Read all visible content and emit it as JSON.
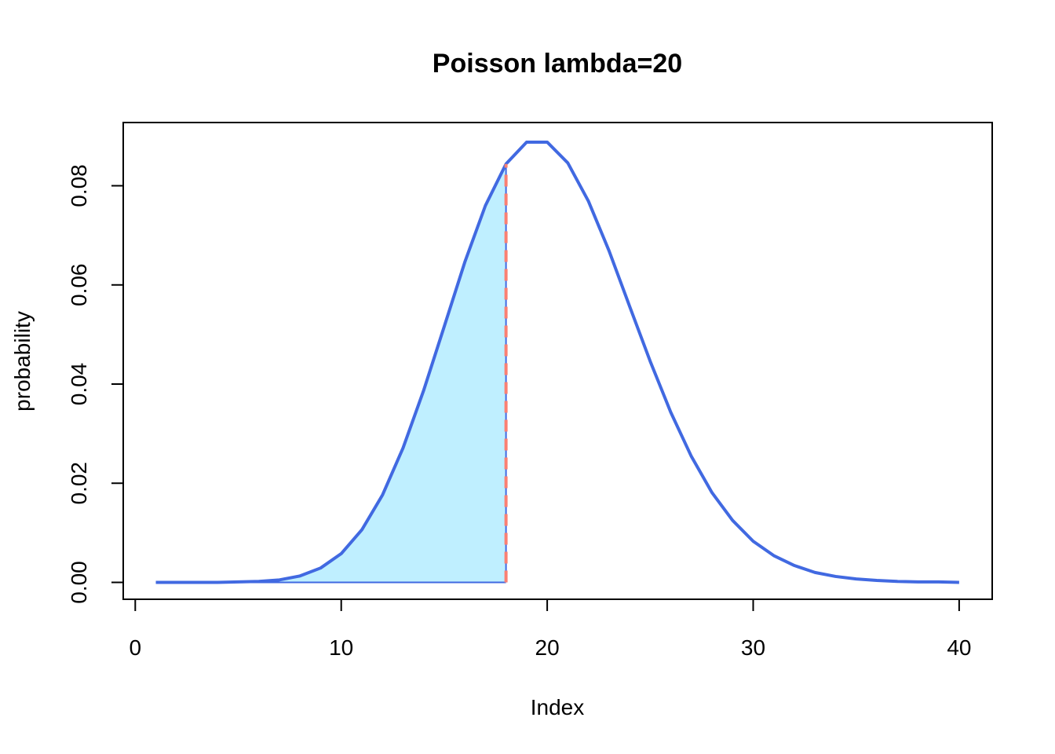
{
  "chart_data": {
    "type": "line",
    "title": "Poisson lambda=20",
    "xlabel": "Index",
    "ylabel": "probability",
    "xlim": [
      0,
      40
    ],
    "ylim": [
      0,
      0.09
    ],
    "x_ticks": [
      0,
      10,
      20,
      30,
      40
    ],
    "x_tick_labels": [
      "0",
      "10",
      "20",
      "30",
      "40"
    ],
    "y_ticks": [
      0,
      0.02,
      0.04,
      0.06,
      0.08
    ],
    "y_tick_labels": [
      "0.00",
      "0.02",
      "0.04",
      "0.06",
      "0.08"
    ],
    "grid": false,
    "series": [
      {
        "color": "#4169E1",
        "x": [
          1,
          2,
          3,
          4,
          5,
          6,
          7,
          8,
          9,
          10,
          11,
          12,
          13,
          14,
          15,
          16,
          17,
          18,
          19,
          20,
          21,
          22,
          23,
          24,
          25,
          26,
          27,
          28,
          29,
          30,
          31,
          32,
          33,
          34,
          35,
          36,
          37,
          38,
          39,
          40
        ],
        "values": [
          0.0,
          0.0,
          0.0,
          0.0,
          0.0001,
          0.0002,
          0.0005,
          0.0013,
          0.0029,
          0.0058,
          0.0106,
          0.0176,
          0.0271,
          0.0387,
          0.0516,
          0.0646,
          0.076,
          0.0844,
          0.0888,
          0.0888,
          0.0846,
          0.0769,
          0.0669,
          0.0557,
          0.0446,
          0.0343,
          0.0254,
          0.0181,
          0.0125,
          0.0083,
          0.0054,
          0.0034,
          0.002,
          0.0012,
          0.0007,
          0.0004,
          0.0002,
          0.0001,
          0.0001,
          0.0
        ]
      }
    ],
    "shaded_region": {
      "from_x": 1,
      "to_x": 18,
      "fill": "#BFEFFF"
    },
    "vertical_line": {
      "x": 18,
      "color": "#FA8072",
      "style": "dashed"
    }
  }
}
